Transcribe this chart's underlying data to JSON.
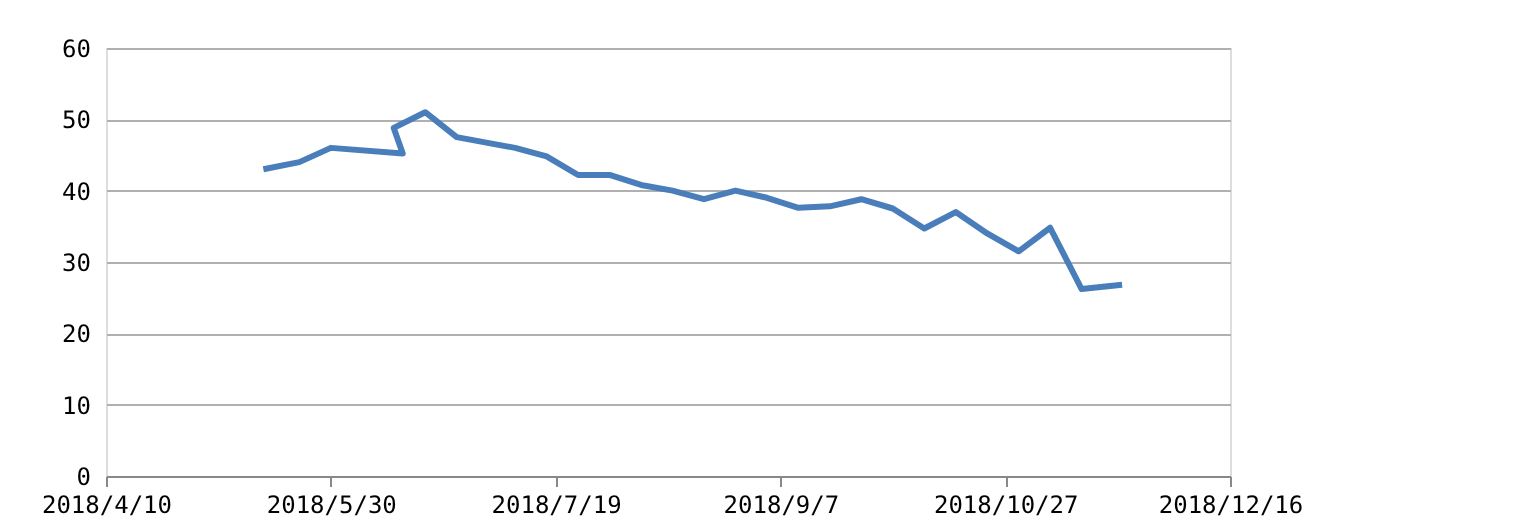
{
  "chart_data": {
    "type": "line",
    "x": [
      "2018-05-15",
      "2018-05-23",
      "2018-05-30",
      "2018-06-15",
      "2018-06-13",
      "2018-06-20",
      "2018-06-27",
      "2018-07-10",
      "2018-07-17",
      "2018-07-24",
      "2018-07-31",
      "2018-08-07",
      "2018-08-14",
      "2018-08-21",
      "2018-08-28",
      "2018-09-04",
      "2018-09-11",
      "2018-09-18",
      "2018-09-25",
      "2018-10-02",
      "2018-10-09",
      "2018-10-16",
      "2018-10-23",
      "2018-10-30",
      "2018-11-06",
      "2018-11-13",
      "2018-11-22"
    ],
    "series": [
      {
        "color": "#4a7ebb",
        "values": [
          43,
          44,
          46,
          45.2,
          48.8,
          51,
          47.5,
          46,
          44.8,
          42.2,
          42.2,
          40.8,
          40,
          38.8,
          40,
          39,
          37.6,
          37.8,
          38.8,
          37.5,
          34.7,
          37,
          34,
          31.5,
          34.8,
          26.2,
          26.8
        ]
      }
    ],
    "xlim": [
      "2018-04-10",
      "2018-12-16"
    ],
    "xticks": [
      {
        "value": "2018-04-10",
        "label": "2018/4/10"
      },
      {
        "value": "2018-05-30",
        "label": "2018/5/30"
      },
      {
        "value": "2018-07-19",
        "label": "2018/7/19"
      },
      {
        "value": "2018-09-07",
        "label": "2018/9/7"
      },
      {
        "value": "2018-10-27",
        "label": "2018/10/27"
      },
      {
        "value": "2018-12-16",
        "label": "2018/12/16"
      }
    ],
    "ylim": [
      0,
      60
    ],
    "yticks": [
      0,
      10,
      20,
      30,
      40,
      50,
      60
    ],
    "grid": "y",
    "marker": "none",
    "line_style": "solid"
  }
}
